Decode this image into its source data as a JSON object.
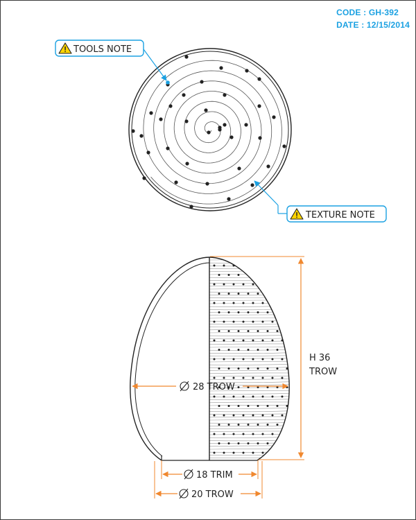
{
  "header": {
    "code": "CODE : GH-392",
    "date": "DATE : 12/15/2014"
  },
  "callouts": {
    "tools_note": "TOOLS NOTE",
    "texture_note": "TEXTURE NOTE",
    "warning_icon": "warning-triangle-icon"
  },
  "dimensions": {
    "height_value": "H 36",
    "height_unit": "TROW",
    "max_diameter": "28 TROW",
    "trim_diameter": "18 TRIM",
    "base_diameter": "20 TROW",
    "diameter_symbol": "diameter-symbol-icon"
  },
  "colors": {
    "accent": "#1ba1e2",
    "dimension": "#f0882f",
    "line": "#222222",
    "warning": "#ffd400"
  }
}
